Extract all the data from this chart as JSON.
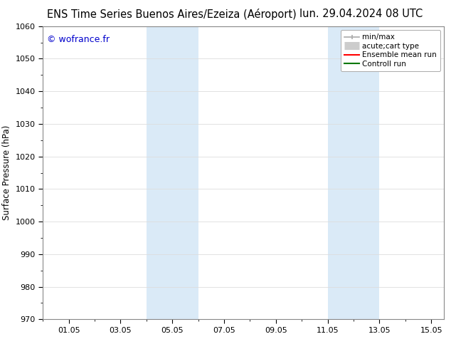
{
  "title_left": "ENS Time Series Buenos Aires/Ezeiza (Aéroport)",
  "title_right": "lun. 29.04.2024 08 UTC",
  "ylabel": "Surface Pressure (hPa)",
  "xlim": [
    0.0,
    15.5
  ],
  "ylim": [
    970,
    1060
  ],
  "yticks": [
    970,
    980,
    990,
    1000,
    1010,
    1020,
    1030,
    1040,
    1050,
    1060
  ],
  "xtick_labels": [
    "01.05",
    "03.05",
    "05.05",
    "07.05",
    "09.05",
    "11.05",
    "13.05",
    "15.05"
  ],
  "xtick_positions": [
    1,
    3,
    5,
    7,
    9,
    11,
    13,
    15
  ],
  "shaded_regions": [
    {
      "xmin": 4.0,
      "xmax": 6.0
    },
    {
      "xmin": 11.0,
      "xmax": 13.0
    }
  ],
  "shaded_color": "#daeaf7",
  "background_color": "#ffffff",
  "watermark_text": "© wofrance.fr",
  "watermark_color": "#0000cc",
  "legend_entries": [
    {
      "label": "min/max",
      "color": "#aaaaaa",
      "lw": 1.5
    },
    {
      "label": "acute;cart type",
      "color": "#cccccc",
      "lw": 7
    },
    {
      "label": "Ensemble mean run",
      "color": "#ff0000",
      "lw": 1.5
    },
    {
      "label": "Controll run",
      "color": "#007700",
      "lw": 1.5
    }
  ],
  "grid_color": "#dddddd",
  "spine_color": "#888888",
  "title_fontsize": 10.5,
  "axis_fontsize": 8.5,
  "tick_fontsize": 8,
  "minor_tick_count": 1
}
